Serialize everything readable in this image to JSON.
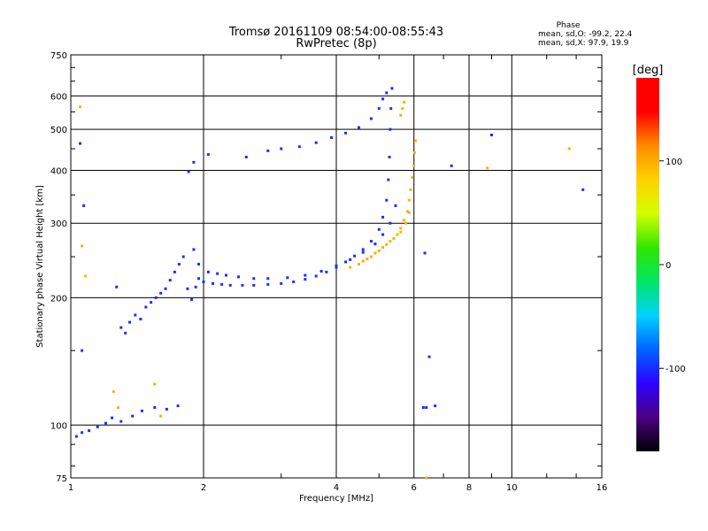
{
  "chart_data": {
    "type": "scatter",
    "title": "Tromsø 20161109 08:54:00-08:55:43",
    "subtitle": "RwPretec (8p)",
    "phase_info": {
      "heading": "Phase",
      "line_o": "mean, sd,O: -99.2, 22.4",
      "line_x": "mean, sd,X:  97.9, 19.9"
    },
    "xlabel": "Frequency [MHz]",
    "ylabel": "Stationary phase Virtual Height [km]",
    "x_scale": "log",
    "y_scale": "log",
    "xlim": [
      1,
      16
    ],
    "ylim": [
      75,
      750
    ],
    "x_ticks": [
      1,
      2,
      4,
      6,
      8,
      10,
      16
    ],
    "x_tick_labels": [
      "1",
      "2",
      "4",
      "6",
      "8",
      "10",
      "16"
    ],
    "y_ticks": [
      75,
      100,
      200,
      300,
      400,
      500,
      600,
      750
    ],
    "y_tick_labels": [
      "75",
      "100",
      "200",
      "300",
      "400",
      "500",
      "600",
      "750"
    ],
    "grid": true,
    "colorbar": {
      "label": "[deg]",
      "range": [
        -180,
        180
      ],
      "ticks": [
        100,
        0,
        -100
      ],
      "tick_labels": [
        "100",
        "0",
        "-100"
      ],
      "palette": [
        "#000000",
        "#4b0082",
        "#2e00ff",
        "#0064ff",
        "#00d2ff",
        "#00e664",
        "#32e600",
        "#d2ff00",
        "#ffd200",
        "#ff8c00",
        "#ff0000",
        "#ff0000"
      ]
    },
    "series": [
      {
        "name": "O",
        "color_value": -99.2,
        "phase_sd": 22.4,
        "points": [
          [
            1.03,
            94
          ],
          [
            1.06,
            96
          ],
          [
            1.1,
            97
          ],
          [
            1.15,
            99
          ],
          [
            1.2,
            101
          ],
          [
            1.24,
            104
          ],
          [
            1.3,
            102
          ],
          [
            1.38,
            105
          ],
          [
            1.45,
            108
          ],
          [
            1.55,
            110
          ],
          [
            1.65,
            109
          ],
          [
            1.75,
            111
          ],
          [
            1.05,
            463
          ],
          [
            1.07,
            330
          ],
          [
            1.06,
            150
          ],
          [
            1.27,
            212
          ],
          [
            1.3,
            170
          ],
          [
            1.33,
            165
          ],
          [
            1.36,
            175
          ],
          [
            1.4,
            182
          ],
          [
            1.44,
            178
          ],
          [
            1.48,
            190
          ],
          [
            1.52,
            195
          ],
          [
            1.56,
            200
          ],
          [
            1.6,
            205
          ],
          [
            1.64,
            210
          ],
          [
            1.68,
            220
          ],
          [
            1.72,
            230
          ],
          [
            1.76,
            240
          ],
          [
            1.8,
            250
          ],
          [
            1.84,
            210
          ],
          [
            1.88,
            198
          ],
          [
            1.92,
            212
          ],
          [
            1.85,
            397
          ],
          [
            1.9,
            418
          ],
          [
            2.05,
            436
          ],
          [
            1.95,
            222
          ],
          [
            2.0,
            218
          ],
          [
            2.1,
            216
          ],
          [
            2.2,
            215
          ],
          [
            2.3,
            214
          ],
          [
            2.45,
            214
          ],
          [
            2.6,
            214
          ],
          [
            2.8,
            215
          ],
          [
            3.0,
            216
          ],
          [
            3.2,
            218
          ],
          [
            3.4,
            221
          ],
          [
            3.6,
            225
          ],
          [
            3.8,
            230
          ],
          [
            4.0,
            236
          ],
          [
            4.2,
            243
          ],
          [
            4.4,
            251
          ],
          [
            4.6,
            260
          ],
          [
            4.8,
            272
          ],
          [
            5.0,
            290
          ],
          [
            5.1,
            310
          ],
          [
            5.2,
            340
          ],
          [
            5.25,
            380
          ],
          [
            5.28,
            430
          ],
          [
            5.3,
            500
          ],
          [
            5.32,
            560
          ],
          [
            5.35,
            625
          ],
          [
            2.5,
            430
          ],
          [
            2.8,
            445
          ],
          [
            3.0,
            450
          ],
          [
            3.3,
            455
          ],
          [
            3.6,
            465
          ],
          [
            3.9,
            478
          ],
          [
            4.2,
            490
          ],
          [
            4.5,
            505
          ],
          [
            4.8,
            530
          ],
          [
            5.0,
            560
          ],
          [
            5.1,
            590
          ],
          [
            5.2,
            610
          ],
          [
            1.9,
            260
          ],
          [
            1.95,
            240
          ],
          [
            2.05,
            230
          ],
          [
            2.15,
            228
          ],
          [
            2.25,
            226
          ],
          [
            2.4,
            224
          ],
          [
            2.6,
            222
          ],
          [
            2.8,
            222
          ],
          [
            3.1,
            223
          ],
          [
            3.4,
            226
          ],
          [
            3.7,
            231
          ],
          [
            4.0,
            238
          ],
          [
            4.3,
            246
          ],
          [
            4.6,
            256
          ],
          [
            4.9,
            268
          ],
          [
            5.1,
            282
          ],
          [
            5.3,
            300
          ],
          [
            5.45,
            330
          ],
          [
            6.3,
            110
          ],
          [
            6.4,
            110
          ],
          [
            6.7,
            111
          ],
          [
            6.5,
            145
          ],
          [
            6.35,
            255
          ],
          [
            7.3,
            410
          ],
          [
            9.0,
            485
          ],
          [
            14.5,
            360
          ]
        ]
      },
      {
        "name": "X",
        "color_value": 97.9,
        "phase_sd": 19.9,
        "points": [
          [
            4.3,
            236
          ],
          [
            4.5,
            240
          ],
          [
            4.7,
            247
          ],
          [
            4.9,
            255
          ],
          [
            5.1,
            263
          ],
          [
            5.3,
            272
          ],
          [
            5.5,
            282
          ],
          [
            5.6,
            292
          ],
          [
            5.7,
            305
          ],
          [
            5.8,
            320
          ],
          [
            5.85,
            340
          ],
          [
            5.9,
            360
          ],
          [
            5.95,
            385
          ],
          [
            6.0,
            410
          ],
          [
            6.02,
            440
          ],
          [
            6.05,
            470
          ],
          [
            4.6,
            244
          ],
          [
            4.8,
            250
          ],
          [
            5.0,
            258
          ],
          [
            5.2,
            267
          ],
          [
            5.4,
            276
          ],
          [
            5.6,
            286
          ],
          [
            5.75,
            300
          ],
          [
            5.85,
            318
          ],
          [
            5.6,
            540
          ],
          [
            5.65,
            560
          ],
          [
            5.7,
            580
          ],
          [
            1.05,
            565
          ],
          [
            1.06,
            265
          ],
          [
            1.08,
            225
          ],
          [
            1.25,
            120
          ],
          [
            1.28,
            110
          ],
          [
            1.55,
            125
          ],
          [
            1.6,
            105
          ],
          [
            8.8,
            405
          ],
          [
            13.5,
            450
          ],
          [
            6.4,
            75
          ]
        ]
      }
    ]
  }
}
